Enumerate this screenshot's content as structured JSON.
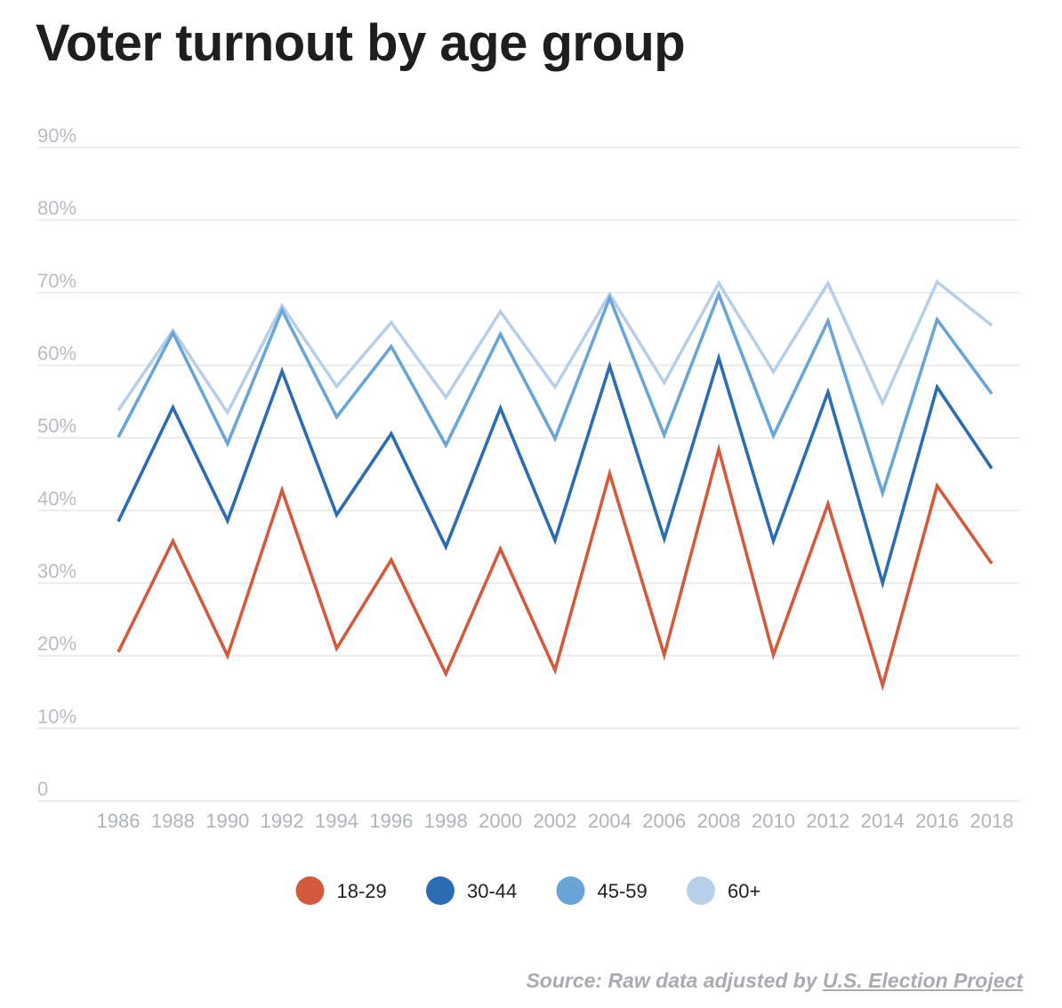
{
  "chart_data": {
    "type": "line",
    "title": "Voter turnout by age group",
    "xlabel": "",
    "ylabel": "",
    "ylim": [
      0,
      90
    ],
    "yticks": [
      0,
      10,
      20,
      30,
      40,
      50,
      60,
      70,
      80,
      90
    ],
    "ytick_labels": [
      "0",
      "10%",
      "20%",
      "30%",
      "40%",
      "50%",
      "60%",
      "70%",
      "80%",
      "90%"
    ],
    "categories": [
      "1986",
      "1988",
      "1990",
      "1992",
      "1994",
      "1996",
      "1998",
      "2000",
      "2002",
      "2004",
      "2006",
      "2008",
      "2010",
      "2012",
      "2014",
      "2016",
      "2018"
    ],
    "legend_position": "bottom-center",
    "series": [
      {
        "name": "18-29",
        "color": "#d45a3d",
        "values": [
          20.5,
          35.8,
          20.0,
          42.8,
          21.0,
          33.2,
          17.5,
          34.7,
          18.0,
          45.1,
          20.1,
          48.4,
          20.1,
          40.9,
          15.9,
          43.4,
          32.7
        ]
      },
      {
        "name": "30-44",
        "color": "#2b6cb3",
        "values": [
          38.5,
          54.2,
          38.6,
          59.2,
          39.4,
          50.6,
          35.0,
          54.1,
          35.9,
          59.9,
          36.1,
          61.0,
          35.8,
          56.3,
          30.0,
          57.0,
          45.8
        ]
      },
      {
        "name": "45-59",
        "color": "#6aa5d9",
        "values": [
          50.1,
          64.5,
          49.2,
          67.6,
          52.9,
          62.6,
          49.0,
          64.3,
          49.9,
          69.3,
          50.4,
          69.8,
          50.3,
          66.1,
          42.4,
          66.3,
          56.1
        ]
      },
      {
        "name": "60+",
        "color": "#b7cfe8",
        "values": [
          53.8,
          64.8,
          53.5,
          68.2,
          57.1,
          65.9,
          55.6,
          67.4,
          57.0,
          69.8,
          57.6,
          71.3,
          59.1,
          71.3,
          54.8,
          71.5,
          65.5
        ]
      }
    ]
  },
  "source": {
    "prefix": "Source: Raw data adjusted by ",
    "link_text": "U.S. Election Project"
  },
  "colors": {
    "grid": "#e6e7ea",
    "axis_text": "#b9bcc2",
    "title": "#1e1e1e"
  }
}
